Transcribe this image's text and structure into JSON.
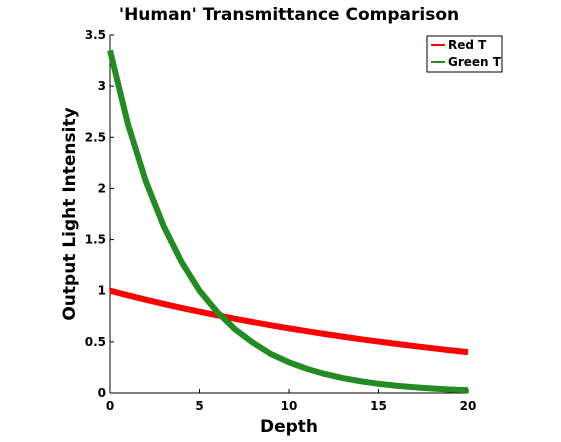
{
  "chart_data": {
    "type": "line",
    "title": "'Human' Transmittance Comparison",
    "xlabel": "Depth",
    "ylabel": "Output Light Intensity",
    "xlim": [
      0,
      20
    ],
    "ylim": [
      0,
      3.5
    ],
    "xticks": [
      "0",
      "5",
      "10",
      "15",
      "20"
    ],
    "yticks": [
      "0",
      "0.5",
      "1",
      "1.5",
      "2",
      "2.5",
      "3",
      "3.5"
    ],
    "grid": false,
    "legend_position": "top-right",
    "x": [
      0,
      1,
      2,
      3,
      4,
      5,
      6,
      7,
      8,
      9,
      10,
      11,
      12,
      13,
      14,
      15,
      16,
      17,
      18,
      19,
      20
    ],
    "series": [
      {
        "name": "Red T",
        "color": "#ff0000",
        "values": [
          1.0,
          0.955,
          0.912,
          0.871,
          0.832,
          0.795,
          0.76,
          0.725,
          0.693,
          0.662,
          0.632,
          0.604,
          0.577,
          0.551,
          0.526,
          0.503,
          0.48,
          0.459,
          0.438,
          0.418,
          0.4
        ]
      },
      {
        "name": "Green T",
        "color": "#228b22",
        "values": [
          3.35,
          2.63,
          2.07,
          1.63,
          1.28,
          1.0,
          0.79,
          0.62,
          0.49,
          0.38,
          0.3,
          0.236,
          0.186,
          0.146,
          0.115,
          0.09,
          0.071,
          0.056,
          0.044,
          0.034,
          0.027
        ]
      }
    ]
  }
}
